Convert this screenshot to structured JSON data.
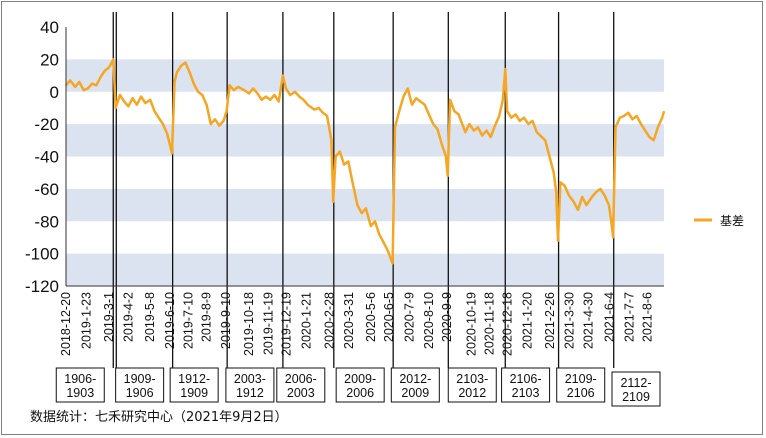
{
  "chart_data": {
    "type": "line",
    "title": "",
    "xlabel": "",
    "ylabel": "",
    "ylim": [
      -120,
      40
    ],
    "y_ticks": [
      40,
      20,
      0,
      -20,
      -40,
      -60,
      -80,
      -100,
      -120
    ],
    "shaded_bands": [
      [
        0,
        20
      ],
      [
        -40,
        -20
      ],
      [
        -80,
        -60
      ],
      [
        -120,
        -100
      ]
    ],
    "x_range": [
      "2018-12-20",
      "2021-9-2"
    ],
    "x_tick_labels": [
      "2018-12-20",
      "2019-1-23",
      "2019-3-1",
      "2019-4-2",
      "2019-5-8",
      "2019-6-10",
      "2019-7-10",
      "2019-8-9",
      "2019-9-10",
      "2019-10-18",
      "2019-11-19",
      "2019-12-19",
      "2020-1-21",
      "2020-2-28",
      "2020-3-31",
      "2020-5-6",
      "2020-6-5",
      "2020-7-9",
      "2020-8-10",
      "2020-9-9",
      "2020-10-19",
      "2020-11-18",
      "2020-12-18",
      "2021-1-20",
      "2021-2-26",
      "2021-3-30",
      "2021-4-30",
      "2021-6-4",
      "2021-7-7",
      "2021-8-6"
    ],
    "contract_rolls": [
      {
        "label": "1906-1903",
        "date": "2019-3-8",
        "line_x_from": "2019-3-8",
        "line_x_to": "2019-3-13"
      },
      {
        "label": "1909-1906",
        "date": "2019-6-14",
        "line_x_from": "2019-6-14"
      },
      {
        "label": "1912-1909",
        "date": "2019-9-12",
        "line_x_from": "2019-9-12"
      },
      {
        "label": "2003-1912",
        "date": "2019-12-13",
        "line_x_from": "2019-12-13"
      },
      {
        "label": "2006-2003",
        "date": "2020-3-6",
        "line_x_from": "2020-3-6"
      },
      {
        "label": "2009-2006",
        "date": "2020-6-12",
        "line_x_from": "2020-6-12"
      },
      {
        "label": "2012-2009",
        "date": "2020-9-11",
        "line_x_from": "2020-9-11"
      },
      {
        "label": "2103-2012",
        "date": "2020-12-14",
        "line_x_from": "2020-12-14"
      },
      {
        "label": "2106-2103",
        "date": "2021-3-12",
        "line_x_from": "2021-3-12"
      },
      {
        "label": "2109-2106",
        "date": "2021-6-11",
        "line_x_from": "2021-6-11"
      },
      {
        "label": "2112-2109",
        "date": "2021-9-2"
      }
    ],
    "series": [
      {
        "name": "基差",
        "color": "#f5a623",
        "points": [
          [
            "2018-12-20",
            4
          ],
          [
            "2018-12-27",
            7
          ],
          [
            "2019-1-4",
            3
          ],
          [
            "2019-1-11",
            6
          ],
          [
            "2019-1-18",
            1
          ],
          [
            "2019-1-25",
            2
          ],
          [
            "2019-2-1",
            5
          ],
          [
            "2019-2-8",
            4
          ],
          [
            "2019-2-15",
            9
          ],
          [
            "2019-2-22",
            13
          ],
          [
            "2019-3-1",
            15
          ],
          [
            "2019-3-8",
            20
          ],
          [
            "2019-3-12",
            -10
          ],
          [
            "2019-3-19",
            -2
          ],
          [
            "2019-3-26",
            -6
          ],
          [
            "2019-4-2",
            -9
          ],
          [
            "2019-4-9",
            -4
          ],
          [
            "2019-4-16",
            -8
          ],
          [
            "2019-4-23",
            -3
          ],
          [
            "2019-4-30",
            -7
          ],
          [
            "2019-5-8",
            -5
          ],
          [
            "2019-5-15",
            -12
          ],
          [
            "2019-5-22",
            -16
          ],
          [
            "2019-5-29",
            -20
          ],
          [
            "2019-6-5",
            -26
          ],
          [
            "2019-6-13",
            -38
          ],
          [
            "2019-6-17",
            6
          ],
          [
            "2019-6-21",
            12
          ],
          [
            "2019-6-28",
            16
          ],
          [
            "2019-7-5",
            18
          ],
          [
            "2019-7-12",
            12
          ],
          [
            "2019-7-19",
            5
          ],
          [
            "2019-7-26",
            0
          ],
          [
            "2019-8-2",
            -2
          ],
          [
            "2019-8-9",
            -8
          ],
          [
            "2019-8-16",
            -20
          ],
          [
            "2019-8-23",
            -17
          ],
          [
            "2019-8-30",
            -21
          ],
          [
            "2019-9-6",
            -18
          ],
          [
            "2019-9-11",
            -12
          ],
          [
            "2019-9-16",
            4
          ],
          [
            "2019-9-23",
            1
          ],
          [
            "2019-9-30",
            3
          ],
          [
            "2019-10-10",
            1
          ],
          [
            "2019-10-18",
            -1
          ],
          [
            "2019-10-25",
            2
          ],
          [
            "2019-11-1",
            -1
          ],
          [
            "2019-11-8",
            -5
          ],
          [
            "2019-11-15",
            -3
          ],
          [
            "2019-11-22",
            -5
          ],
          [
            "2019-11-29",
            -2
          ],
          [
            "2019-12-6",
            -6
          ],
          [
            "2019-12-13",
            10
          ],
          [
            "2019-12-18",
            2
          ],
          [
            "2019-12-25",
            -2
          ],
          [
            "2020-1-2",
            0
          ],
          [
            "2020-1-9",
            -3
          ],
          [
            "2020-1-16",
            -5
          ],
          [
            "2020-1-23",
            -8
          ],
          [
            "2020-2-3",
            -11
          ],
          [
            "2020-2-10",
            -10
          ],
          [
            "2020-2-17",
            -13
          ],
          [
            "2020-2-24",
            -15
          ],
          [
            "2020-3-2",
            -30
          ],
          [
            "2020-3-5",
            -68
          ],
          [
            "2020-3-9",
            -40
          ],
          [
            "2020-3-16",
            -37
          ],
          [
            "2020-3-23",
            -45
          ],
          [
            "2020-3-30",
            -43
          ],
          [
            "2020-4-7",
            -58
          ],
          [
            "2020-4-14",
            -70
          ],
          [
            "2020-4-21",
            -75
          ],
          [
            "2020-4-28",
            -72
          ],
          [
            "2020-5-6",
            -83
          ],
          [
            "2020-5-13",
            -80
          ],
          [
            "2020-5-20",
            -88
          ],
          [
            "2020-5-27",
            -93
          ],
          [
            "2020-6-3",
            -98
          ],
          [
            "2020-6-8",
            -103
          ],
          [
            "2020-6-11",
            -106
          ],
          [
            "2020-6-15",
            -22
          ],
          [
            "2020-6-22",
            -12
          ],
          [
            "2020-6-29",
            -3
          ],
          [
            "2020-7-6",
            2
          ],
          [
            "2020-7-13",
            -8
          ],
          [
            "2020-7-20",
            -4
          ],
          [
            "2020-7-27",
            -6
          ],
          [
            "2020-8-3",
            -8
          ],
          [
            "2020-8-10",
            -14
          ],
          [
            "2020-8-17",
            -20
          ],
          [
            "2020-8-24",
            -23
          ],
          [
            "2020-8-31",
            -32
          ],
          [
            "2020-9-7",
            -40
          ],
          [
            "2020-9-10",
            -52
          ],
          [
            "2020-9-14",
            -5
          ],
          [
            "2020-9-21",
            -12
          ],
          [
            "2020-9-28",
            -14
          ],
          [
            "2020-10-9",
            -25
          ],
          [
            "2020-10-16",
            -20
          ],
          [
            "2020-10-23",
            -24
          ],
          [
            "2020-10-30",
            -22
          ],
          [
            "2020-11-6",
            -27
          ],
          [
            "2020-11-13",
            -24
          ],
          [
            "2020-11-20",
            -28
          ],
          [
            "2020-11-27",
            -21
          ],
          [
            "2020-12-4",
            -15
          ],
          [
            "2020-12-10",
            -5
          ],
          [
            "2020-12-14",
            14
          ],
          [
            "2020-12-17",
            -12
          ],
          [
            "2020-12-24",
            -16
          ],
          [
            "2020-12-31",
            -14
          ],
          [
            "2021-1-7",
            -18
          ],
          [
            "2021-1-14",
            -16
          ],
          [
            "2021-1-21",
            -20
          ],
          [
            "2021-1-28",
            -18
          ],
          [
            "2021-2-4",
            -25
          ],
          [
            "2021-2-18",
            -30
          ],
          [
            "2021-2-25",
            -40
          ],
          [
            "2021-3-4",
            -50
          ],
          [
            "2021-3-8",
            -62
          ],
          [
            "2021-3-11",
            -92
          ],
          [
            "2021-3-15",
            -56
          ],
          [
            "2021-3-22",
            -58
          ],
          [
            "2021-3-29",
            -64
          ],
          [
            "2021-4-6",
            -68
          ],
          [
            "2021-4-13",
            -73
          ],
          [
            "2021-4-20",
            -65
          ],
          [
            "2021-4-27",
            -70
          ],
          [
            "2021-5-6",
            -65
          ],
          [
            "2021-5-13",
            -62
          ],
          [
            "2021-5-20",
            -60
          ],
          [
            "2021-5-27",
            -64
          ],
          [
            "2021-6-3",
            -70
          ],
          [
            "2021-6-7",
            -80
          ],
          [
            "2021-6-10",
            -90
          ],
          [
            "2021-6-14",
            -22
          ],
          [
            "2021-6-21",
            -16
          ],
          [
            "2021-6-28",
            -15
          ],
          [
            "2021-7-5",
            -13
          ],
          [
            "2021-7-12",
            -17
          ],
          [
            "2021-7-19",
            -15
          ],
          [
            "2021-7-26",
            -20
          ],
          [
            "2021-8-2",
            -24
          ],
          [
            "2021-8-9",
            -28
          ],
          [
            "2021-8-16",
            -30
          ],
          [
            "2021-8-23",
            -22
          ],
          [
            "2021-8-30",
            -16
          ],
          [
            "2021-9-2",
            -12
          ]
        ]
      }
    ],
    "grid": false,
    "legend_position": "right"
  },
  "source": "数据统计：七禾研究中心（2021年9月2日）"
}
